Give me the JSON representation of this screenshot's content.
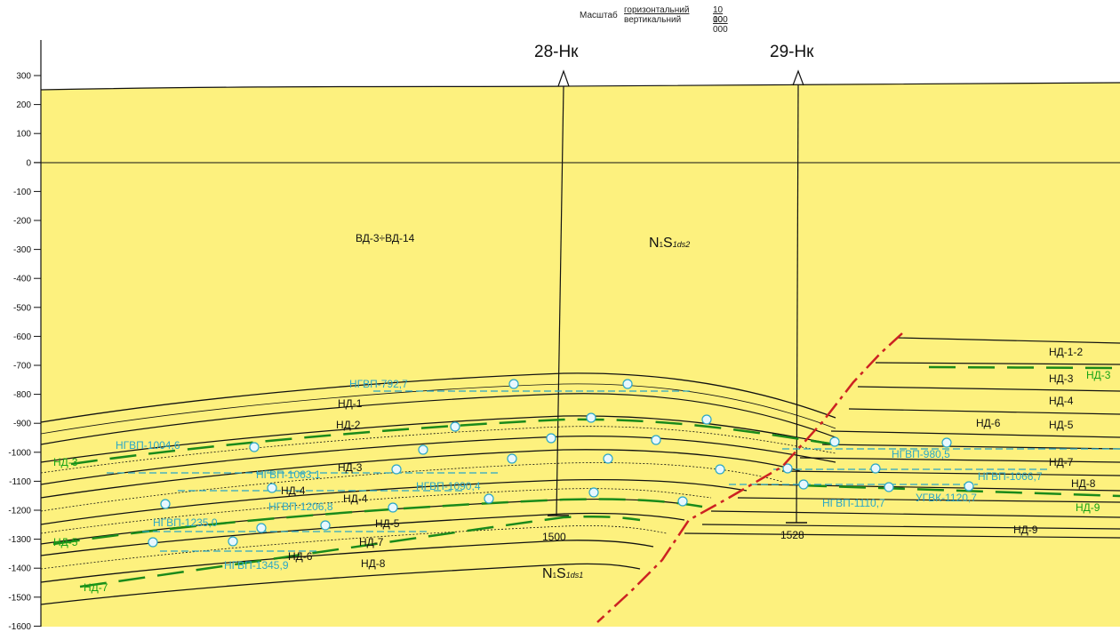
{
  "scale": {
    "label": "Масштаб",
    "horizontal_label": "горизонтальний",
    "horizontal_value": "10 000",
    "vertical_label": "вертикальний",
    "vertical_value": "10 000"
  },
  "wells": [
    {
      "name": "28-Нк",
      "bottom_label": "1500"
    },
    {
      "name": "29-Нк",
      "bottom_label": "1528"
    }
  ],
  "depth_axis": {
    "ticks": [
      "300",
      "200",
      "100",
      "0",
      "-100",
      "-200",
      "-300",
      "-400",
      "-500",
      "-600",
      "-700",
      "-800",
      "-900",
      "-1000",
      "-1100",
      "-1200",
      "-1300",
      "-1400",
      "-1500",
      "-1600"
    ]
  },
  "formations": {
    "upper_left": "ВД-3÷ВД-14",
    "upper_right_main": "N",
    "upper_right_sub": "1",
    "upper_right_s": "S",
    "upper_right_idx": "1ds2",
    "lower_main": "N",
    "lower_sub": "1",
    "lower_s": "S",
    "lower_idx": "1ds1"
  },
  "horizon_labels": {
    "black": [
      "НД-1",
      "НД-2",
      "НД-3",
      "НД-4",
      "НД-5",
      "НД-6",
      "НД-7",
      "НД-8",
      "НД-1-2",
      "НД-3",
      "НД-4",
      "НД-5",
      "НД-6",
      "НД-7",
      "НД-8",
      "НД-9",
      "НД-4"
    ],
    "green": [
      "НД-3",
      "НД-5",
      "НД-7",
      "НД-3",
      "НД-9"
    ],
    "cyan": [
      "НГВП-792,7",
      "НГВП-1004,6",
      "НГВП-1063,1",
      "НГВП-1090,4",
      "НГВП-1206,8",
      "НГВП-1235,0",
      "НГВП-1345,9",
      "НГВП-980,5",
      "НГВП-1066,7",
      "НГВП-1110,7",
      "УГВК-1120,7"
    ]
  },
  "colors": {
    "background": "#fdf17e",
    "fault": "#cc2222",
    "gwc": "#2aa7c7",
    "reservoir": "#1a8a1a"
  }
}
